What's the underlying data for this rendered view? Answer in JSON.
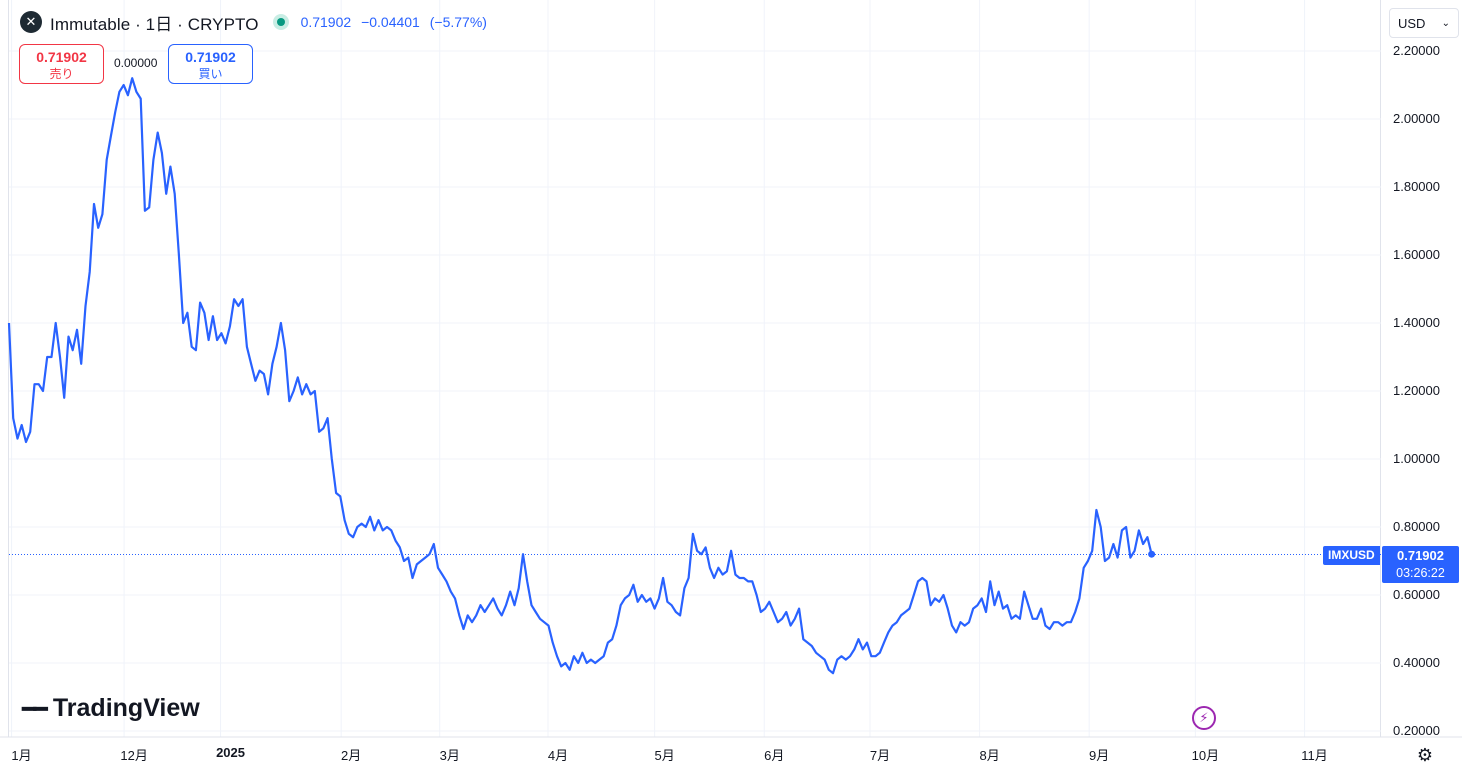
{
  "header": {
    "title": "Immutable · 1日 · CRYPTO",
    "logo_glyph": "✕",
    "last": "0.71902",
    "change": "−0.04401",
    "change_pct": "(−5.77%)"
  },
  "trade": {
    "sell_price": "0.71902",
    "sell_label": "売り",
    "spread": "0.00000",
    "buy_price": "0.71902",
    "buy_label": "買い"
  },
  "currency": {
    "label": "USD",
    "icon": "chevron-down-icon"
  },
  "price_tag": {
    "symbol": "IMXUSD",
    "price": "0.71902",
    "countdown": "03:26:22"
  },
  "brand": {
    "name": "TradingView"
  },
  "colors": {
    "line": "#2962ff",
    "sell": "#f23645",
    "buy": "#2962ff",
    "grid": "#f0f3fa"
  },
  "chart_data": {
    "type": "line",
    "series": [
      {
        "name": "IMXUSD",
        "values": [
          1.4,
          1.12,
          1.06,
          1.1,
          1.05,
          1.08,
          1.22,
          1.22,
          1.2,
          1.3,
          1.3,
          1.4,
          1.3,
          1.18,
          1.36,
          1.32,
          1.38,
          1.28,
          1.45,
          1.55,
          1.75,
          1.68,
          1.72,
          1.88,
          1.95,
          2.02,
          2.08,
          2.1,
          2.07,
          2.12,
          2.08,
          2.06,
          1.73,
          1.74,
          1.88,
          1.96,
          1.9,
          1.78,
          1.86,
          1.78,
          1.6,
          1.4,
          1.43,
          1.33,
          1.32,
          1.46,
          1.43,
          1.35,
          1.42,
          1.35,
          1.37,
          1.34,
          1.39,
          1.47,
          1.45,
          1.47,
          1.33,
          1.28,
          1.23,
          1.26,
          1.25,
          1.19,
          1.28,
          1.33,
          1.4,
          1.32,
          1.17,
          1.2,
          1.24,
          1.19,
          1.22,
          1.19,
          1.2,
          1.08,
          1.09,
          1.12,
          1.0,
          0.9,
          0.89,
          0.82,
          0.78,
          0.77,
          0.8,
          0.81,
          0.8,
          0.83,
          0.79,
          0.82,
          0.79,
          0.8,
          0.79,
          0.76,
          0.74,
          0.7,
          0.71,
          0.65,
          0.69,
          0.7,
          0.71,
          0.72,
          0.75,
          0.68,
          0.66,
          0.64,
          0.61,
          0.59,
          0.54,
          0.5,
          0.54,
          0.52,
          0.54,
          0.57,
          0.55,
          0.57,
          0.59,
          0.56,
          0.54,
          0.57,
          0.61,
          0.57,
          0.62,
          0.72,
          0.64,
          0.57,
          0.55,
          0.53,
          0.52,
          0.51,
          0.46,
          0.42,
          0.39,
          0.4,
          0.38,
          0.42,
          0.4,
          0.43,
          0.4,
          0.41,
          0.4,
          0.41,
          0.42,
          0.46,
          0.47,
          0.51,
          0.57,
          0.59,
          0.6,
          0.63,
          0.58,
          0.6,
          0.58,
          0.59,
          0.56,
          0.59,
          0.65,
          0.58,
          0.57,
          0.55,
          0.54,
          0.62,
          0.65,
          0.78,
          0.73,
          0.72,
          0.74,
          0.68,
          0.65,
          0.68,
          0.66,
          0.67,
          0.73,
          0.66,
          0.65,
          0.65,
          0.64,
          0.64,
          0.6,
          0.55,
          0.56,
          0.58,
          0.55,
          0.52,
          0.53,
          0.55,
          0.51,
          0.53,
          0.56,
          0.47,
          0.46,
          0.45,
          0.43,
          0.42,
          0.41,
          0.38,
          0.37,
          0.41,
          0.42,
          0.41,
          0.42,
          0.44,
          0.47,
          0.44,
          0.46,
          0.42,
          0.42,
          0.43,
          0.46,
          0.49,
          0.51,
          0.52,
          0.54,
          0.55,
          0.56,
          0.6,
          0.64,
          0.65,
          0.64,
          0.57,
          0.59,
          0.58,
          0.6,
          0.56,
          0.51,
          0.49,
          0.52,
          0.51,
          0.52,
          0.56,
          0.57,
          0.59,
          0.55,
          0.64,
          0.57,
          0.61,
          0.56,
          0.57,
          0.53,
          0.54,
          0.53,
          0.61,
          0.57,
          0.53,
          0.53,
          0.56,
          0.51,
          0.5,
          0.52,
          0.52,
          0.51,
          0.52,
          0.52,
          0.55,
          0.59,
          0.68,
          0.7,
          0.73,
          0.85,
          0.8,
          0.7,
          0.71,
          0.75,
          0.71,
          0.79,
          0.8,
          0.71,
          0.73,
          0.79,
          0.75,
          0.77,
          0.72
        ]
      }
    ],
    "x_ticks": [
      {
        "label": "1月",
        "bold": false,
        "pos": 0.6
      },
      {
        "label": "12月",
        "bold": false,
        "pos": 27.1
      },
      {
        "label": "2025",
        "bold": true,
        "pos": 49.8
      },
      {
        "label": "2月",
        "bold": false,
        "pos": 78.2
      },
      {
        "label": "3月",
        "bold": false,
        "pos": 101.4
      },
      {
        "label": "4月",
        "bold": false,
        "pos": 126.9
      },
      {
        "label": "5月",
        "bold": false,
        "pos": 152.0
      },
      {
        "label": "6月",
        "bold": false,
        "pos": 177.8
      },
      {
        "label": "7月",
        "bold": false,
        "pos": 202.7
      },
      {
        "label": "8月",
        "bold": false,
        "pos": 228.5
      },
      {
        "label": "9月",
        "bold": false,
        "pos": 254.3
      },
      {
        "label": "10月",
        "bold": false,
        "pos": 279.3
      },
      {
        "label": "11月",
        "bold": false,
        "pos": 305.0
      }
    ],
    "y_ticks": [
      "2.20000",
      "2.00000",
      "1.80000",
      "1.60000",
      "1.40000",
      "1.20000",
      "1.00000",
      "0.80000",
      "0.60000",
      "0.40000",
      "0.20000"
    ],
    "ylim": [
      0.2,
      2.2
    ],
    "xlim": [
      0,
      323
    ],
    "last_value": 0.71902,
    "grid": true
  }
}
